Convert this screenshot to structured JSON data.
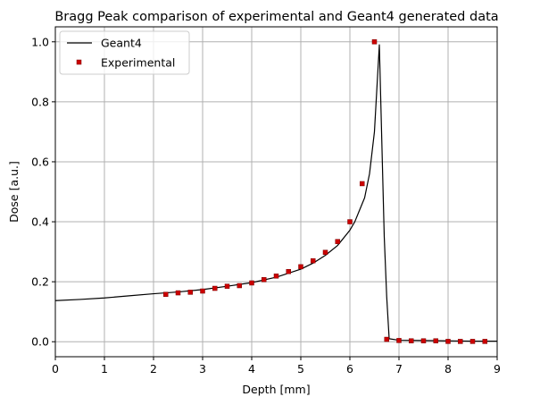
{
  "chart_data": {
    "type": "line",
    "title": "Bragg Peak comparison of experimental and Geant4 generated data",
    "xlabel": "Depth [mm]",
    "ylabel": "Dose [a.u.]",
    "xlim": [
      0,
      9
    ],
    "ylim": [
      -0.05,
      1.05
    ],
    "xticks": [
      0,
      1,
      2,
      3,
      4,
      5,
      6,
      7,
      8,
      9
    ],
    "xtick_labels": [
      "0",
      "1",
      "2",
      "3",
      "4",
      "5",
      "6",
      "7",
      "8",
      "9"
    ],
    "yticks": [
      0.0,
      0.2,
      0.4,
      0.6,
      0.8,
      1.0
    ],
    "ytick_labels": [
      "0.0",
      "0.2",
      "0.4",
      "0.6",
      "0.8",
      "1.0"
    ],
    "grid": true,
    "legend_position": "top-left",
    "series": [
      {
        "name": "Geant4",
        "kind": "line",
        "color": "#000000",
        "x": [
          0,
          0.5,
          1.0,
          1.5,
          2.0,
          2.5,
          3.0,
          3.5,
          4.0,
          4.5,
          5.0,
          5.25,
          5.5,
          5.75,
          6.0,
          6.1,
          6.2,
          6.3,
          6.4,
          6.5,
          6.6,
          6.7,
          6.75,
          6.8,
          7.0,
          7.5,
          8.0,
          8.5,
          9.0
        ],
        "y": [
          0.137,
          0.141,
          0.146,
          0.153,
          0.16,
          0.166,
          0.174,
          0.185,
          0.197,
          0.215,
          0.242,
          0.262,
          0.288,
          0.321,
          0.372,
          0.4,
          0.44,
          0.48,
          0.56,
          0.7,
          0.99,
          0.35,
          0.15,
          0.01,
          0.005,
          0.004,
          0.003,
          0.002,
          0.002
        ]
      },
      {
        "name": "Experimental",
        "kind": "scatter",
        "color": "#cc0000",
        "x": [
          2.25,
          2.5,
          2.75,
          3.0,
          3.25,
          3.5,
          3.75,
          4.0,
          4.25,
          4.5,
          4.75,
          5.0,
          5.25,
          5.5,
          5.75,
          6.0,
          6.25,
          6.5,
          6.75,
          7.0,
          7.25,
          7.5,
          7.75,
          8.0,
          8.25,
          8.5,
          8.75
        ],
        "y": [
          0.158,
          0.163,
          0.165,
          0.169,
          0.178,
          0.185,
          0.187,
          0.196,
          0.207,
          0.219,
          0.234,
          0.25,
          0.27,
          0.298,
          0.334,
          0.4,
          0.527,
          1.0,
          0.008,
          0.004,
          0.003,
          0.003,
          0.003,
          0.001,
          0.001,
          0.001,
          0.001
        ]
      }
    ]
  }
}
